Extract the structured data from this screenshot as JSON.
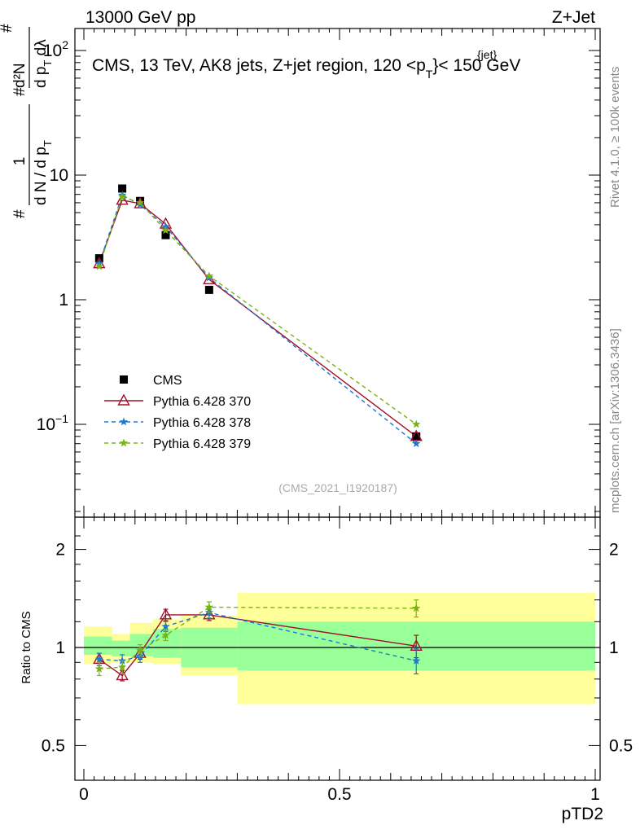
{
  "header": {
    "left": "13000 GeV pp",
    "right": "Z+Jet"
  },
  "side_text": {
    "rivet": "Rivet 4.1.0, ≥ 100k events",
    "mcplots": "mcplots.cern.ch [arXiv:1306.3436]"
  },
  "watermark": "(CMS_2021_I1920187)",
  "title_parts": {
    "prefix": "CMS, 13 TeV, AK8 jets, Z+jet region, 120 <p",
    "sub": "T",
    "sup": "{jet}",
    "suffix": "}< 150 GeV"
  },
  "ylabel_top": {
    "num_hash": "#",
    "num": "1",
    "den": "d N / d p",
    "den_sub": "T",
    "frac2_num": "d²N",
    "frac2_den_prefix": "d p",
    "frac2_den_sub": "T",
    "frac2_den_suffix": " dλ",
    "hash2": "#",
    "hash3": "#"
  },
  "ylabel_bottom": "Ratio to CMS",
  "xlabel": "pTD2",
  "colors": {
    "cms": "#000000",
    "p370": "#a0102a",
    "p378": "#1e78d2",
    "p379": "#78b414",
    "band_outer": "#ffff99",
    "band_inner": "#99ff99"
  },
  "chart_data": [
    {
      "type": "line",
      "scale": "log",
      "xlim": [
        0,
        1
      ],
      "ylim": [
        0.02,
        150
      ],
      "yticks": [
        {
          "value": 100,
          "base": "10",
          "exp": "2"
        },
        {
          "value": 10,
          "base": "10",
          "exp": ""
        },
        {
          "value": 1,
          "base": "1",
          "exp": ""
        },
        {
          "value": 0.1,
          "base": "10",
          "exp": "−1"
        }
      ],
      "legend": [
        "CMS",
        "Pythia 6.428 370",
        "Pythia 6.428 378",
        "Pythia 6.428 379"
      ],
      "legend_position": "bottom-left",
      "series": [
        {
          "name": "CMS",
          "x": [
            0.03,
            0.075,
            0.11,
            0.16,
            0.245,
            0.65
          ],
          "values": [
            2.15,
            7.8,
            6.2,
            3.3,
            1.2,
            0.08
          ]
        },
        {
          "name": "Pythia 6.428 370",
          "x": [
            0.03,
            0.075,
            0.11,
            0.16,
            0.245,
            0.65
          ],
          "values": [
            1.95,
            6.3,
            5.9,
            4.05,
            1.45,
            0.08
          ]
        },
        {
          "name": "Pythia 6.428 378",
          "x": [
            0.03,
            0.075,
            0.11,
            0.16,
            0.245,
            0.65
          ],
          "values": [
            1.95,
            6.9,
            5.8,
            3.85,
            1.5,
            0.07
          ]
        },
        {
          "name": "Pythia 6.428 379",
          "x": [
            0.03,
            0.075,
            0.11,
            0.16,
            0.245,
            0.65
          ],
          "values": [
            1.85,
            6.7,
            6.0,
            3.6,
            1.55,
            0.1
          ]
        }
      ]
    },
    {
      "type": "line",
      "scale": "log",
      "xlim": [
        0,
        1
      ],
      "ylim": [
        0.4,
        2.4
      ],
      "yticks": [
        {
          "value": 2,
          "label": "2"
        },
        {
          "value": 1,
          "label": "1"
        },
        {
          "value": 0.5,
          "label": "0.5"
        }
      ],
      "xticks": [
        {
          "value": 0,
          "label": "0"
        },
        {
          "value": 0.5,
          "label": "0.5"
        },
        {
          "value": 1,
          "label": "1"
        }
      ],
      "bands": [
        {
          "x0": 0.0,
          "x1": 0.055,
          "outer": [
            0.89,
            1.16
          ],
          "inner": [
            0.95,
            1.08
          ]
        },
        {
          "x0": 0.055,
          "x1": 0.09,
          "outer": [
            0.9,
            1.1
          ],
          "inner": [
            0.94,
            1.05
          ]
        },
        {
          "x0": 0.09,
          "x1": 0.135,
          "outer": [
            0.9,
            1.19
          ],
          "inner": [
            0.94,
            1.1
          ]
        },
        {
          "x0": 0.135,
          "x1": 0.19,
          "outer": [
            0.89,
            1.22
          ],
          "inner": [
            0.93,
            1.14
          ]
        },
        {
          "x0": 0.19,
          "x1": 0.3,
          "outer": [
            0.82,
            1.25
          ],
          "inner": [
            0.87,
            1.15
          ]
        },
        {
          "x0": 0.3,
          "x1": 1.0,
          "outer": [
            0.67,
            1.47
          ],
          "inner": [
            0.85,
            1.2
          ]
        }
      ],
      "series": [
        {
          "name": "Pythia 6.428 370",
          "x": [
            0.03,
            0.075,
            0.11,
            0.16,
            0.245,
            0.65
          ],
          "values": [
            0.92,
            0.82,
            0.96,
            1.26,
            1.26,
            1.01
          ],
          "err": [
            0.04,
            0.03,
            0.04,
            0.05,
            0.05,
            0.08
          ]
        },
        {
          "name": "Pythia 6.428 378",
          "x": [
            0.03,
            0.075,
            0.11,
            0.16,
            0.245,
            0.65
          ],
          "values": [
            0.92,
            0.91,
            0.94,
            1.16,
            1.28,
            0.91
          ],
          "err": [
            0.04,
            0.04,
            0.04,
            0.04,
            0.05,
            0.08
          ]
        },
        {
          "name": "Pythia 6.428 379",
          "x": [
            0.03,
            0.075,
            0.11,
            0.16,
            0.245,
            0.65
          ],
          "values": [
            0.86,
            0.87,
            0.98,
            1.09,
            1.33,
            1.32
          ],
          "err": [
            0.04,
            0.04,
            0.04,
            0.04,
            0.05,
            0.08
          ]
        }
      ]
    }
  ]
}
